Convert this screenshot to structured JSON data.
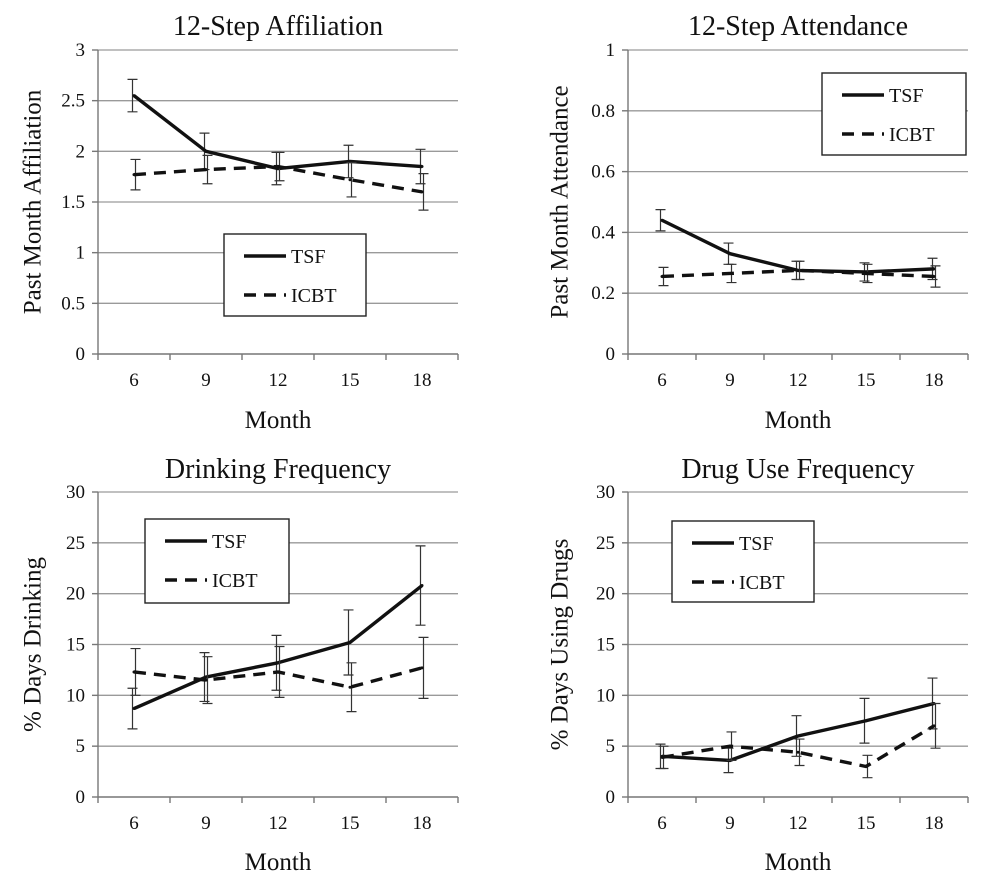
{
  "chart_data": [
    {
      "type": "line",
      "title": "12-Step Affiliation",
      "xlabel": "Month",
      "ylabel": "Past Month Affiliation",
      "categories": [
        "6",
        "9",
        "12",
        "15",
        "18"
      ],
      "ylim": [
        0,
        3
      ],
      "yticks": [
        "0",
        "0.5",
        "1",
        "1.5",
        "2",
        "2.5",
        "3"
      ],
      "grid": "horizontal",
      "legend_position": "center",
      "series": [
        {
          "name": "TSF",
          "style": "solid",
          "values": [
            2.55,
            2.0,
            1.83,
            1.9,
            1.85
          ],
          "error": [
            0.16,
            0.18,
            0.16,
            0.16,
            0.17
          ]
        },
        {
          "name": "ICBT",
          "style": "dashed",
          "values": [
            1.77,
            1.82,
            1.85,
            1.72,
            1.6
          ],
          "error": [
            0.15,
            0.14,
            0.14,
            0.17,
            0.18
          ]
        }
      ]
    },
    {
      "type": "line",
      "title": "12-Step Attendance",
      "xlabel": "Month",
      "ylabel": "Past Month Attendance",
      "categories": [
        "6",
        "9",
        "12",
        "15",
        "18"
      ],
      "ylim": [
        0,
        1
      ],
      "yticks": [
        "0",
        "0.2",
        "0.4",
        "0.6",
        "0.8",
        "1"
      ],
      "grid": "horizontal",
      "legend_position": "top-right",
      "series": [
        {
          "name": "TSF",
          "style": "solid",
          "values": [
            0.44,
            0.33,
            0.275,
            0.27,
            0.28
          ],
          "error": [
            0.035,
            0.035,
            0.03,
            0.03,
            0.035
          ]
        },
        {
          "name": "ICBT",
          "style": "dashed",
          "values": [
            0.255,
            0.265,
            0.275,
            0.265,
            0.255
          ],
          "error": [
            0.03,
            0.03,
            0.03,
            0.03,
            0.035
          ]
        }
      ]
    },
    {
      "type": "line",
      "title": "Drinking Frequency",
      "xlabel": "Month",
      "ylabel": "% Days Drinking",
      "categories": [
        "6",
        "9",
        "12",
        "15",
        "18"
      ],
      "ylim": [
        0,
        30
      ],
      "yticks": [
        "0",
        "5",
        "10",
        "15",
        "20",
        "25",
        "30"
      ],
      "grid": "horizontal",
      "legend_position": "top-left",
      "series": [
        {
          "name": "TSF",
          "style": "solid",
          "values": [
            8.7,
            11.8,
            13.2,
            15.2,
            20.8
          ],
          "error": [
            2.0,
            2.4,
            2.7,
            3.2,
            3.9
          ]
        },
        {
          "name": "ICBT",
          "style": "dashed",
          "values": [
            12.3,
            11.5,
            12.3,
            10.8,
            12.7
          ],
          "error": [
            2.3,
            2.3,
            2.5,
            2.4,
            3.0
          ]
        }
      ]
    },
    {
      "type": "line",
      "title": "Drug Use Frequency",
      "xlabel": "Month",
      "ylabel": "% Days Using Drugs",
      "categories": [
        "6",
        "9",
        "12",
        "15",
        "18"
      ],
      "ylim": [
        0,
        30
      ],
      "yticks": [
        "0",
        "5",
        "10",
        "15",
        "20",
        "25",
        "30"
      ],
      "grid": "horizontal",
      "legend_position": "top-left",
      "series": [
        {
          "name": "TSF",
          "style": "solid",
          "values": [
            4.0,
            3.6,
            6.0,
            7.5,
            9.2
          ],
          "error": [
            1.2,
            1.2,
            2.0,
            2.2,
            2.5
          ]
        },
        {
          "name": "ICBT",
          "style": "dashed",
          "values": [
            3.9,
            5.0,
            4.4,
            3.0,
            7.0
          ],
          "error": [
            1.1,
            1.4,
            1.3,
            1.1,
            2.2
          ]
        }
      ]
    }
  ]
}
